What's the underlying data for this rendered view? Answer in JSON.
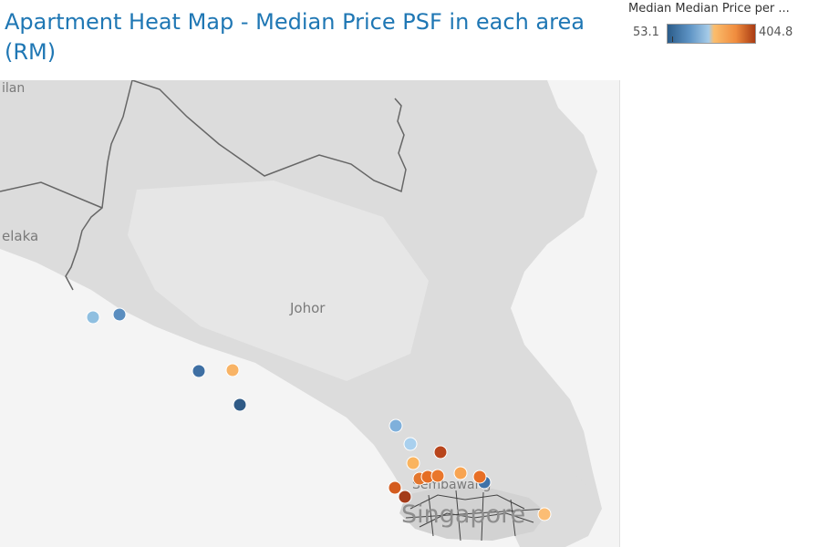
{
  "title": "Apartment Heat Map - Median Price PSF in each area (RM)",
  "legend": {
    "title": "Median Median Price per ...",
    "min_label": "53.1",
    "max_label": "404.8",
    "min": 53.1,
    "max": 404.8,
    "colors": [
      "#2b5c8a",
      "#5d93c4",
      "#a6cbe8",
      "#fbbd6c",
      "#f08c3e",
      "#a93b13"
    ]
  },
  "map": {
    "labels": {
      "jelebu_fragment": "ilan",
      "melaka_fragment": "elaka",
      "johor": "Johor",
      "sembawang_fragment": "Sembawang",
      "singapore": "Singapore"
    },
    "points": [
      {
        "color": "#8fbfe0"
      },
      {
        "color": "#5a8dbf"
      },
      {
        "color": "#3e6fa3"
      },
      {
        "color": "#f8b365"
      },
      {
        "color": "#2f5a86"
      },
      {
        "color": "#7fb0db"
      },
      {
        "color": "#a9d0ee"
      },
      {
        "color": "#fab45f"
      },
      {
        "color": "#b8451c"
      },
      {
        "color": "#e3762e"
      },
      {
        "color": "#e56d24"
      },
      {
        "color": "#e9762b"
      },
      {
        "color": "#f8a451"
      },
      {
        "color": "#3e72a8"
      },
      {
        "color": "#d45c1f"
      },
      {
        "color": "#a43c1a"
      },
      {
        "color": "#fbbd74"
      },
      {
        "color": "#e76f26"
      }
    ]
  }
}
